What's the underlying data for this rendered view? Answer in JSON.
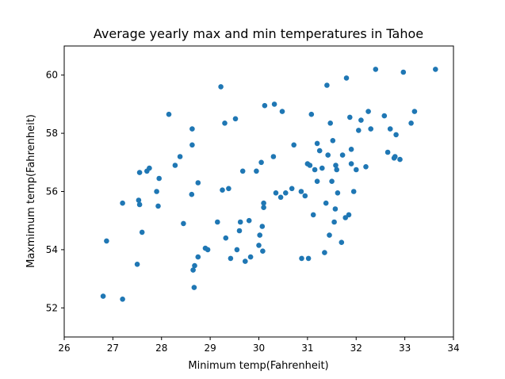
{
  "chart_data": {
    "type": "scatter",
    "title": "Average yearly max and min temperatures in Tahoe",
    "xlabel": "Minimum temp(Fahrenheit)",
    "ylabel": "Maxmimum temp(Fahrenheit)",
    "xlim": [
      26,
      34
    ],
    "ylim": [
      51,
      61
    ],
    "xticks": [
      26,
      27,
      28,
      29,
      30,
      31,
      32,
      33,
      34
    ],
    "yticks": [
      52,
      54,
      56,
      58,
      60
    ],
    "grid": false,
    "marker_color": "#1f77b4",
    "points": [
      [
        26.8,
        52.4
      ],
      [
        26.87,
        54.3
      ],
      [
        27.2,
        52.3
      ],
      [
        27.2,
        55.6
      ],
      [
        27.5,
        53.5
      ],
      [
        27.53,
        55.7
      ],
      [
        27.55,
        56.65
      ],
      [
        27.55,
        55.55
      ],
      [
        27.6,
        54.6
      ],
      [
        27.7,
        56.7
      ],
      [
        27.75,
        56.8
      ],
      [
        27.9,
        56.0
      ],
      [
        27.93,
        55.5
      ],
      [
        27.95,
        56.45
      ],
      [
        28.15,
        58.65
      ],
      [
        28.28,
        56.9
      ],
      [
        28.38,
        57.2
      ],
      [
        28.45,
        54.9
      ],
      [
        28.62,
        55.9
      ],
      [
        28.63,
        58.15
      ],
      [
        28.63,
        57.6
      ],
      [
        28.65,
        53.3
      ],
      [
        28.67,
        52.7
      ],
      [
        28.68,
        53.45
      ],
      [
        28.75,
        56.3
      ],
      [
        28.75,
        53.75
      ],
      [
        28.9,
        54.05
      ],
      [
        28.95,
        54.0
      ],
      [
        29.15,
        54.95
      ],
      [
        29.22,
        59.6
      ],
      [
        29.25,
        56.05
      ],
      [
        29.3,
        58.35
      ],
      [
        29.32,
        54.4
      ],
      [
        29.38,
        56.1
      ],
      [
        29.42,
        53.7
      ],
      [
        29.52,
        58.5
      ],
      [
        29.55,
        54.0
      ],
      [
        29.6,
        54.65
      ],
      [
        29.62,
        54.95
      ],
      [
        29.67,
        56.7
      ],
      [
        29.72,
        53.6
      ],
      [
        29.8,
        55.0
      ],
      [
        29.83,
        53.75
      ],
      [
        29.95,
        56.7
      ],
      [
        30.0,
        54.15
      ],
      [
        30.02,
        54.5
      ],
      [
        30.05,
        57.0
      ],
      [
        30.07,
        54.8
      ],
      [
        30.08,
        53.95
      ],
      [
        30.1,
        55.45
      ],
      [
        30.1,
        55.6
      ],
      [
        30.12,
        58.95
      ],
      [
        30.3,
        57.2
      ],
      [
        30.32,
        59.0
      ],
      [
        30.35,
        55.95
      ],
      [
        30.45,
        55.8
      ],
      [
        30.48,
        58.75
      ],
      [
        30.55,
        55.95
      ],
      [
        30.68,
        56.1
      ],
      [
        30.72,
        57.6
      ],
      [
        30.87,
        56.0
      ],
      [
        30.88,
        53.7
      ],
      [
        30.95,
        55.85
      ],
      [
        31.0,
        56.95
      ],
      [
        31.02,
        53.7
      ],
      [
        31.05,
        56.9
      ],
      [
        31.08,
        58.65
      ],
      [
        31.12,
        55.2
      ],
      [
        31.15,
        56.75
      ],
      [
        31.2,
        57.65
      ],
      [
        31.2,
        56.35
      ],
      [
        31.25,
        57.4
      ],
      [
        31.3,
        56.8
      ],
      [
        31.35,
        53.9
      ],
      [
        31.38,
        55.6
      ],
      [
        31.4,
        59.65
      ],
      [
        31.42,
        57.25
      ],
      [
        31.45,
        54.5
      ],
      [
        31.47,
        58.35
      ],
      [
        31.5,
        56.35
      ],
      [
        31.52,
        57.75
      ],
      [
        31.55,
        54.95
      ],
      [
        31.57,
        55.4
      ],
      [
        31.58,
        56.9
      ],
      [
        31.6,
        56.75
      ],
      [
        31.62,
        55.95
      ],
      [
        31.7,
        54.25
      ],
      [
        31.72,
        57.25
      ],
      [
        31.78,
        55.1
      ],
      [
        31.8,
        59.9
      ],
      [
        31.85,
        55.2
      ],
      [
        31.87,
        58.55
      ],
      [
        31.9,
        57.45
      ],
      [
        31.9,
        56.95
      ],
      [
        31.95,
        56.0
      ],
      [
        32.0,
        56.75
      ],
      [
        32.05,
        58.1
      ],
      [
        32.1,
        58.45
      ],
      [
        32.2,
        56.85
      ],
      [
        32.25,
        58.75
      ],
      [
        32.3,
        58.15
      ],
      [
        32.4,
        60.2
      ],
      [
        32.58,
        58.6
      ],
      [
        32.65,
        57.35
      ],
      [
        32.7,
        58.15
      ],
      [
        32.78,
        57.15
      ],
      [
        32.8,
        57.2
      ],
      [
        32.82,
        57.95
      ],
      [
        32.9,
        57.1
      ],
      [
        32.97,
        60.1
      ],
      [
        33.13,
        58.35
      ],
      [
        33.2,
        58.75
      ],
      [
        33.63,
        60.2
      ]
    ]
  }
}
